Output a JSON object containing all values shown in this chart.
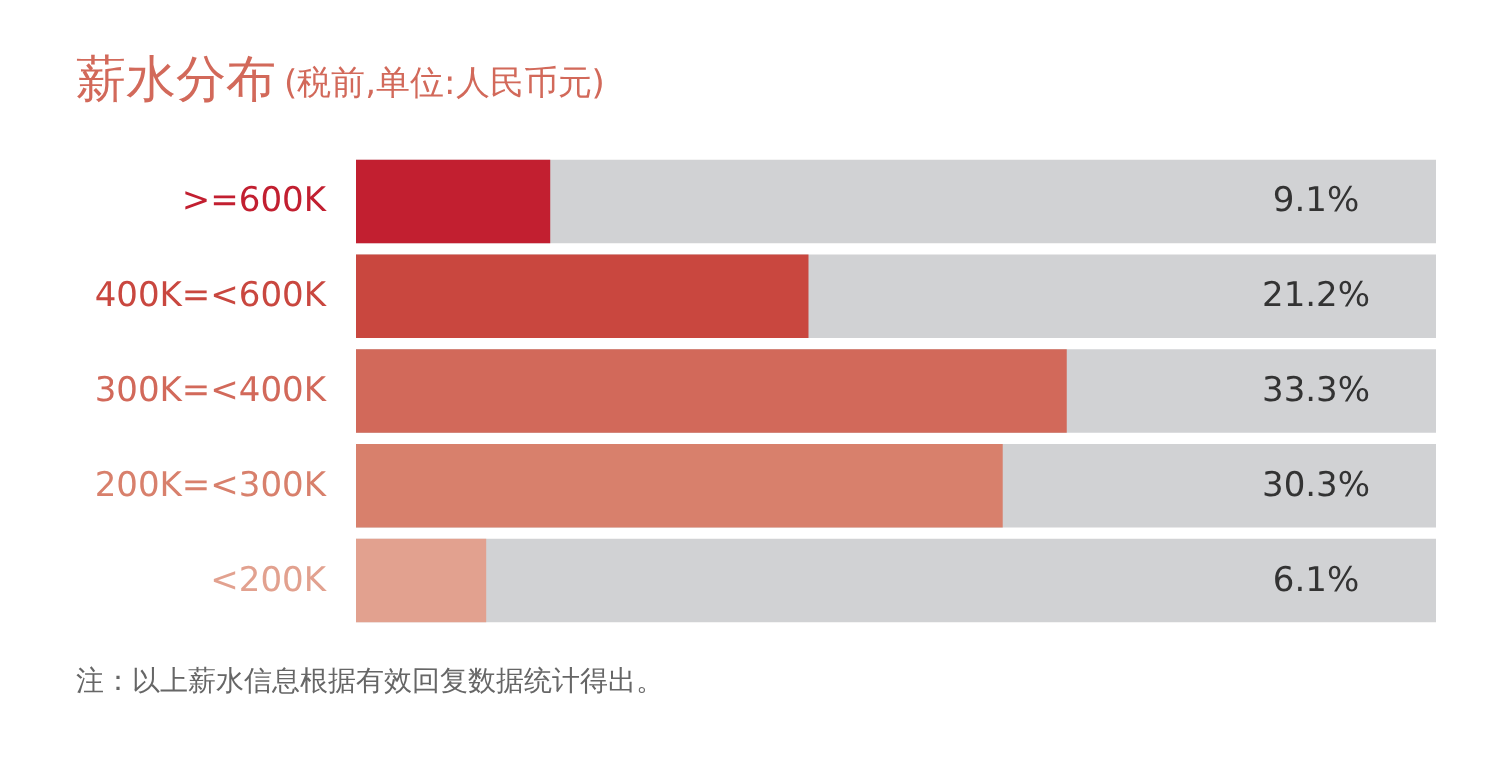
{
  "chart_data": {
    "type": "bar",
    "orientation": "horizontal",
    "title": "薪水分布",
    "subtitle": "(税前,单位:人民币元)",
    "categories": [
      ">=600K",
      "400K=<600K",
      "300K=<400K",
      "200K=<300K",
      "<200K"
    ],
    "values": [
      9.1,
      21.2,
      33.3,
      30.3,
      6.1
    ],
    "colors": [
      "#c21f30",
      "#c9473f",
      "#d2695a",
      "#d8806c",
      "#e2a18f"
    ],
    "value_labels": [
      "9.1%",
      "21.2%",
      "33.3%",
      "30.3%",
      "6.1%"
    ],
    "xlim": [
      0,
      50.6
    ],
    "tick_labels": false,
    "annotations": [
      "注：以上薪水信息根据有效回复数据统计得出。"
    ]
  }
}
